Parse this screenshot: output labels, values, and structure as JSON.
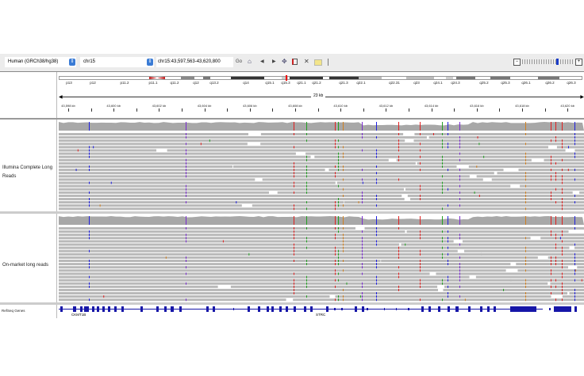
{
  "toolbar": {
    "genome": "Human (GRCh38/hg38)",
    "chromosome": "chr15",
    "locus": "chr15:43,597,563-43,620,800",
    "go_label": "Go",
    "zoom_level_fraction": 0.65
  },
  "icons": [
    "home-icon",
    "back-icon",
    "forward-icon",
    "refresh-icon",
    "region-icon",
    "close-icon",
    "popup-text-icon",
    "zoom-out-icon",
    "zoom-in-icon"
  ],
  "ideogram": {
    "bands": [
      "p13",
      "p12",
      "p11.2",
      "p11.1",
      "q11.2",
      "q12",
      "q13.2",
      "q14",
      "q15.1",
      "q15.3",
      "q21.1",
      "q21.2",
      "q21.3",
      "q22.1",
      "q22.31",
      "q23",
      "q24.1",
      "q24.3",
      "q25.2",
      "q25.3",
      "q26.1",
      "q26.2",
      "q26.3"
    ]
  },
  "ruler": {
    "span": "23 kb",
    "labels": [
      "43,598 kb",
      "43,600 kb",
      "43,602 kb",
      "43,604 kb",
      "43,606 kb",
      "43,608 kb",
      "43,610 kb",
      "43,612 kb",
      "43,614 kb",
      "43,616 kb",
      "43,618 kb",
      "43,620 kb"
    ]
  },
  "tracks": [
    {
      "name": "Illumina Complete Long Reads"
    },
    {
      "name": "On-market long reads"
    }
  ],
  "genes": {
    "track_name": "RefSeq Genes",
    "names": [
      "CKMT1B",
      "STRC"
    ]
  },
  "colors": {
    "A": "#22a022",
    "C": "#2020e0",
    "G": "#d08020",
    "T": "#e02020",
    "read": "#b9b9b9",
    "coverage": "#a8a8a8",
    "gene": "#1616a8",
    "purple": "#7a2ad0"
  }
}
